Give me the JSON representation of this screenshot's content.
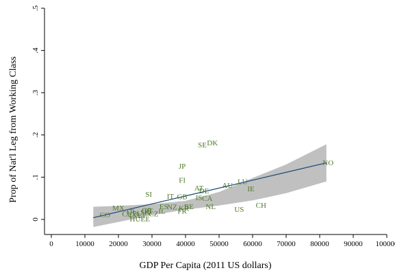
{
  "chart_data": {
    "type": "scatter",
    "title": "",
    "xlabel": "GDP Per Capita (2011 US dollars)",
    "ylabel": "Prop of Nat'l Leg from  Working Class",
    "xlim": [
      0,
      100000
    ],
    "ylim": [
      0,
      0.5
    ],
    "x_ticks": [
      0,
      10000,
      20000,
      30000,
      40000,
      50000,
      60000,
      70000,
      80000,
      90000,
      100000
    ],
    "y_ticks": [
      {
        "value": 0,
        "label": "0"
      },
      {
        "value": 0.1,
        "label": ".1"
      },
      {
        "value": 0.2,
        "label": ".2"
      },
      {
        "value": 0.3,
        "label": ".3"
      },
      {
        "value": 0.4,
        "label": ".4"
      },
      {
        "value": 0.5,
        "label": ".5"
      }
    ],
    "grid": false,
    "legend": "none",
    "colors": {
      "points": "#4f7a2a",
      "fit_line": "#1f4e79",
      "confidence_band": "#c0c0c0"
    },
    "points": [
      {
        "label": "NO",
        "x": 82500,
        "y": 0.135
      },
      {
        "label": "DK",
        "x": 48000,
        "y": 0.182
      },
      {
        "label": "SE",
        "x": 45000,
        "y": 0.177
      },
      {
        "label": "JP",
        "x": 39000,
        "y": 0.127
      },
      {
        "label": "FI",
        "x": 39000,
        "y": 0.093
      },
      {
        "label": "LU",
        "x": 57000,
        "y": 0.09
      },
      {
        "label": "AU",
        "x": 52500,
        "y": 0.081
      },
      {
        "label": "IE",
        "x": 59500,
        "y": 0.073
      },
      {
        "label": "AT",
        "x": 44000,
        "y": 0.075
      },
      {
        "label": "DE",
        "x": 45500,
        "y": 0.068
      },
      {
        "label": "SI",
        "x": 29000,
        "y": 0.06
      },
      {
        "label": "IT",
        "x": 35500,
        "y": 0.055
      },
      {
        "label": "GB",
        "x": 39000,
        "y": 0.054
      },
      {
        "label": "IS",
        "x": 44000,
        "y": 0.052
      },
      {
        "label": "CA",
        "x": 46500,
        "y": 0.05
      },
      {
        "label": "CH",
        "x": 62500,
        "y": 0.034
      },
      {
        "label": "NL",
        "x": 47500,
        "y": 0.031
      },
      {
        "label": "US",
        "x": 56000,
        "y": 0.024
      },
      {
        "label": "ES",
        "x": 33500,
        "y": 0.031
      },
      {
        "label": "NZ",
        "x": 36000,
        "y": 0.03
      },
      {
        "label": "BE",
        "x": 41000,
        "y": 0.031
      },
      {
        "label": "KR",
        "x": 39500,
        "y": 0.027
      },
      {
        "label": "FR",
        "x": 39000,
        "y": 0.02
      },
      {
        "label": "IL",
        "x": 33000,
        "y": 0.02
      },
      {
        "label": "MX",
        "x": 20000,
        "y": 0.028
      },
      {
        "label": "CO",
        "x": 16000,
        "y": 0.011
      },
      {
        "label": "TR",
        "x": 23500,
        "y": 0.019
      },
      {
        "label": "CL",
        "x": 22500,
        "y": 0.014
      },
      {
        "label": "PL",
        "x": 25500,
        "y": 0.015
      },
      {
        "label": "LV",
        "x": 24500,
        "y": 0.011
      },
      {
        "label": "LT",
        "x": 27000,
        "y": 0.01
      },
      {
        "label": "SK",
        "x": 28000,
        "y": 0.017
      },
      {
        "label": "PT",
        "x": 29000,
        "y": 0.02
      },
      {
        "label": "CZ",
        "x": 30500,
        "y": 0.014
      },
      {
        "label": "GR",
        "x": 28500,
        "y": 0.022
      },
      {
        "label": "HU",
        "x": 25000,
        "y": 0.002
      },
      {
        "label": "EE",
        "x": 28000,
        "y": 0.002
      }
    ],
    "fit_line": {
      "x": [
        12500,
        82000
      ],
      "y": [
        0.004,
        0.134
      ]
    },
    "confidence_band": {
      "x": [
        12500,
        20000,
        30000,
        40000,
        50000,
        60000,
        70000,
        82000
      ],
      "lower": [
        -0.018,
        -0.006,
        0.01,
        0.023,
        0.033,
        0.045,
        0.062,
        0.09
      ],
      "upper": [
        0.03,
        0.032,
        0.036,
        0.044,
        0.065,
        0.098,
        0.13,
        0.178
      ]
    }
  }
}
